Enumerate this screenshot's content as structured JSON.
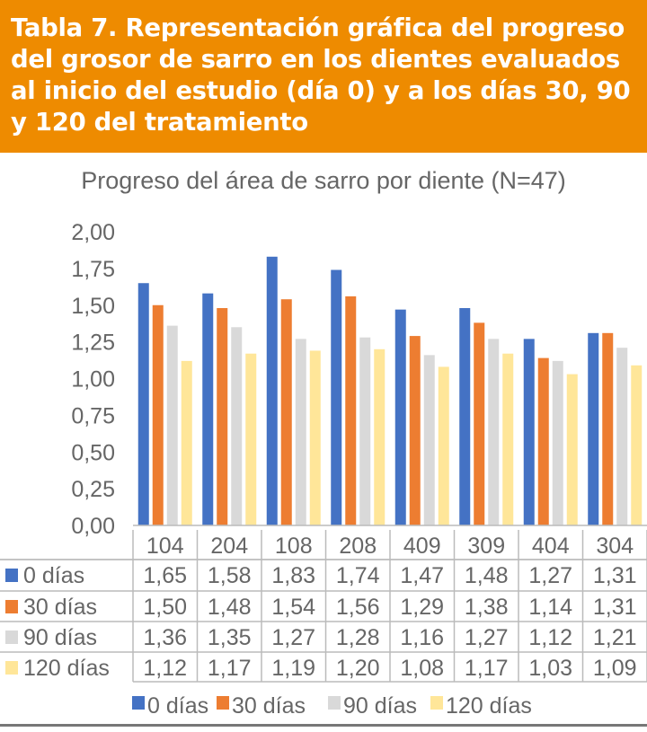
{
  "header": {
    "title": "Tabla 7. Representación gráfica del progreso del grosor de sarro en los dientes evaluados al inicio del estudio (día 0) y a los días 30, 90 y 120 del tratamiento"
  },
  "chart_data": {
    "type": "bar",
    "title": "Progreso del área de sarro por diente (N=47)",
    "categories": [
      "104",
      "204",
      "108",
      "208",
      "409",
      "309",
      "404",
      "304"
    ],
    "series": [
      {
        "name": "0 días",
        "color": "#4472C4",
        "values": [
          1.65,
          1.58,
          1.83,
          1.74,
          1.47,
          1.48,
          1.27,
          1.31
        ],
        "labels": [
          "1,65",
          "1,58",
          "1,83",
          "1,74",
          "1,47",
          "1,48",
          "1,27",
          "1,31"
        ]
      },
      {
        "name": "30 días",
        "color": "#ED7D31",
        "values": [
          1.5,
          1.48,
          1.54,
          1.56,
          1.29,
          1.38,
          1.14,
          1.31
        ],
        "labels": [
          "1,50",
          "1,48",
          "1,54",
          "1,56",
          "1,29",
          "1,38",
          "1,14",
          "1,31"
        ]
      },
      {
        "name": "90 días",
        "color": "#D9D9D9",
        "values": [
          1.36,
          1.35,
          1.27,
          1.28,
          1.16,
          1.27,
          1.12,
          1.21
        ],
        "labels": [
          "1,36",
          "1,35",
          "1,27",
          "1,28",
          "1,16",
          "1,27",
          "1,12",
          "1,21"
        ]
      },
      {
        "name": "120 días",
        "color": "#FFE699",
        "values": [
          1.12,
          1.17,
          1.19,
          1.2,
          1.08,
          1.17,
          1.03,
          1.09
        ],
        "labels": [
          "1,12",
          "1,17",
          "1,19",
          "1,20",
          "1,08",
          "1,17",
          "1,03",
          "1,09"
        ]
      }
    ],
    "ylim": [
      0,
      2
    ],
    "yticks": [
      0,
      0.25,
      0.5,
      0.75,
      1,
      1.25,
      1.5,
      1.75,
      2
    ],
    "ytick_labels": [
      "0,00",
      "0,25",
      "0,50",
      "0,75",
      "1,00",
      "1,25",
      "1,50",
      "1,75",
      "2,00"
    ],
    "legend": "bottom",
    "grid": false
  }
}
